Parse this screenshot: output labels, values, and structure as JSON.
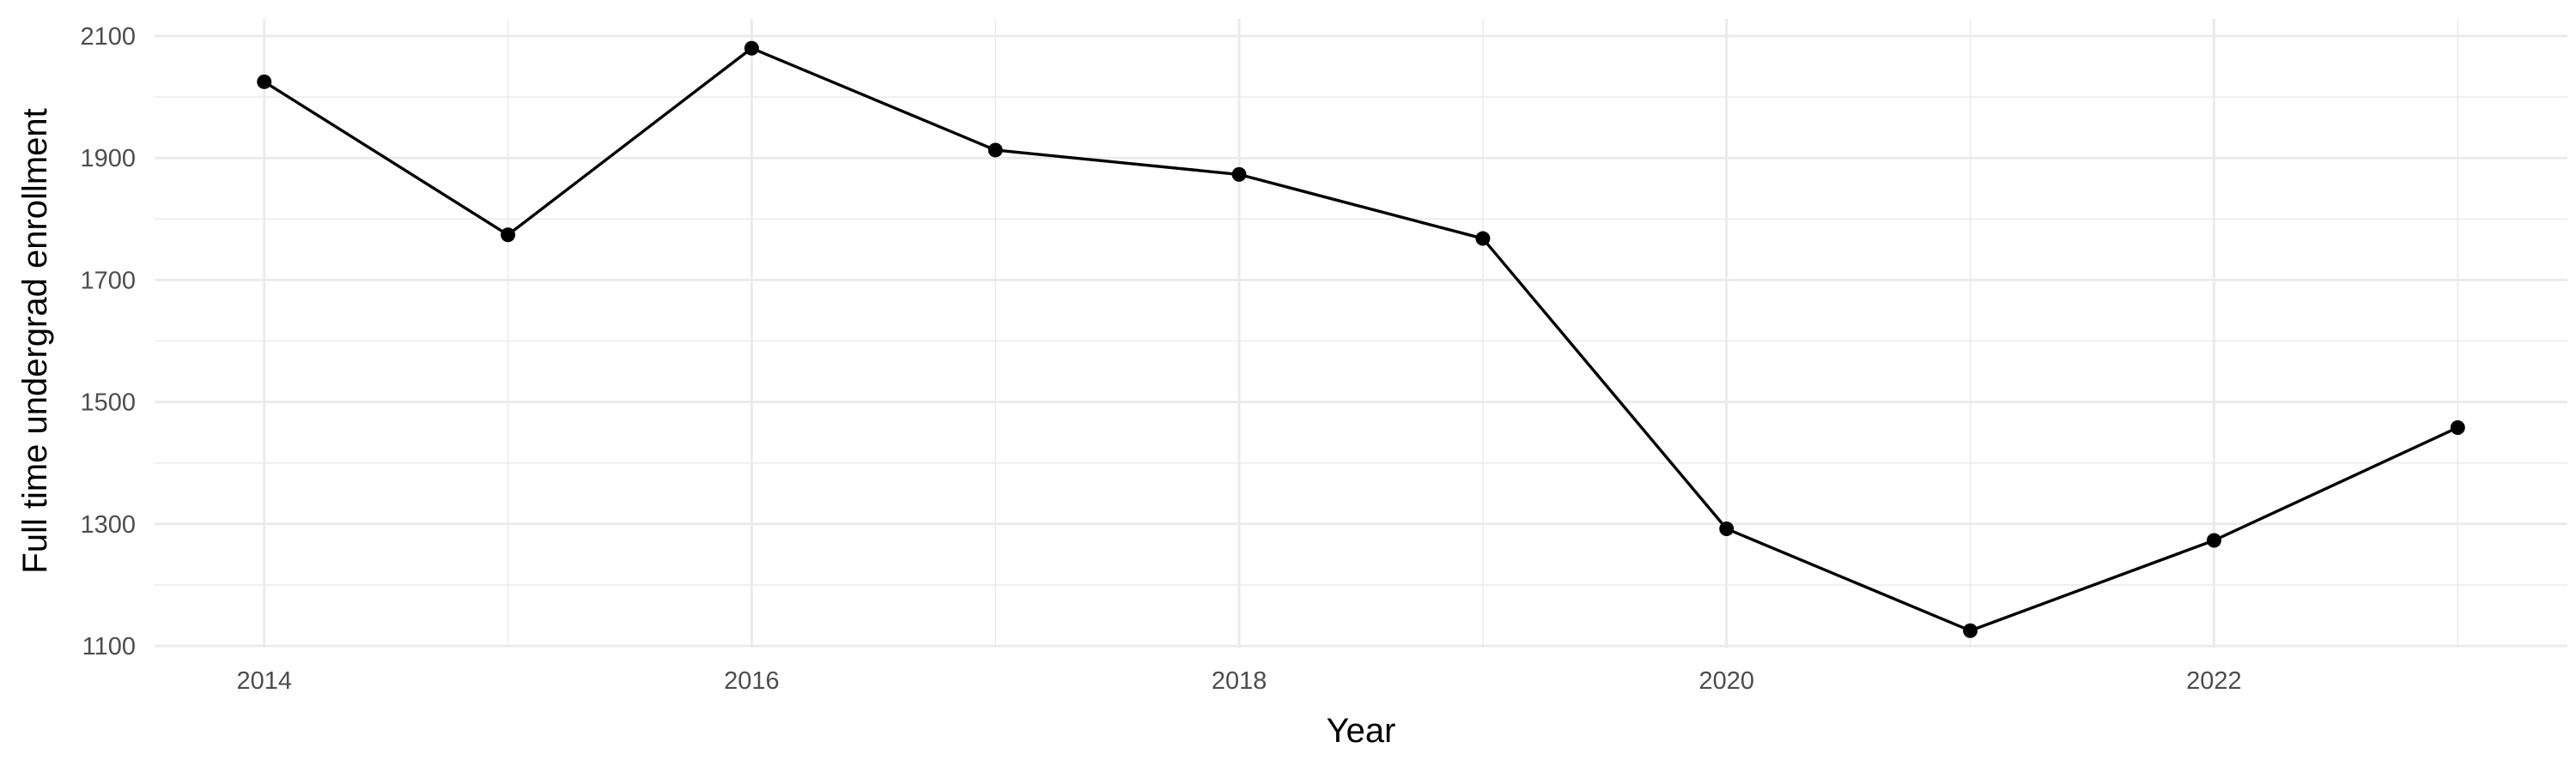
{
  "chart_data": {
    "type": "line",
    "title": "",
    "xlabel": "Year",
    "ylabel": "Full time undergrad enrollment",
    "x": [
      2014,
      2015,
      2016,
      2017,
      2018,
      2019,
      2020,
      2021,
      2022,
      2023
    ],
    "series": [
      {
        "values": [
          2025,
          1774,
          2080,
          1913,
          1873,
          1768,
          1292,
          1125,
          1273,
          1458
        ]
      }
    ],
    "xlim": [
      2013.55,
      2023.45
    ],
    "ylim": [
      1100,
      2100
    ],
    "x_ticks": [
      "2014",
      "2016",
      "2018",
      "2020",
      "2022"
    ],
    "y_ticks": [
      "1100",
      "1300",
      "1500",
      "1700",
      "1900",
      "2100"
    ],
    "grid": true,
    "legend": "none",
    "colors": {
      "line": "#000000",
      "points": "#000000",
      "grid": "#ebebeb",
      "background": "#ffffff"
    }
  }
}
